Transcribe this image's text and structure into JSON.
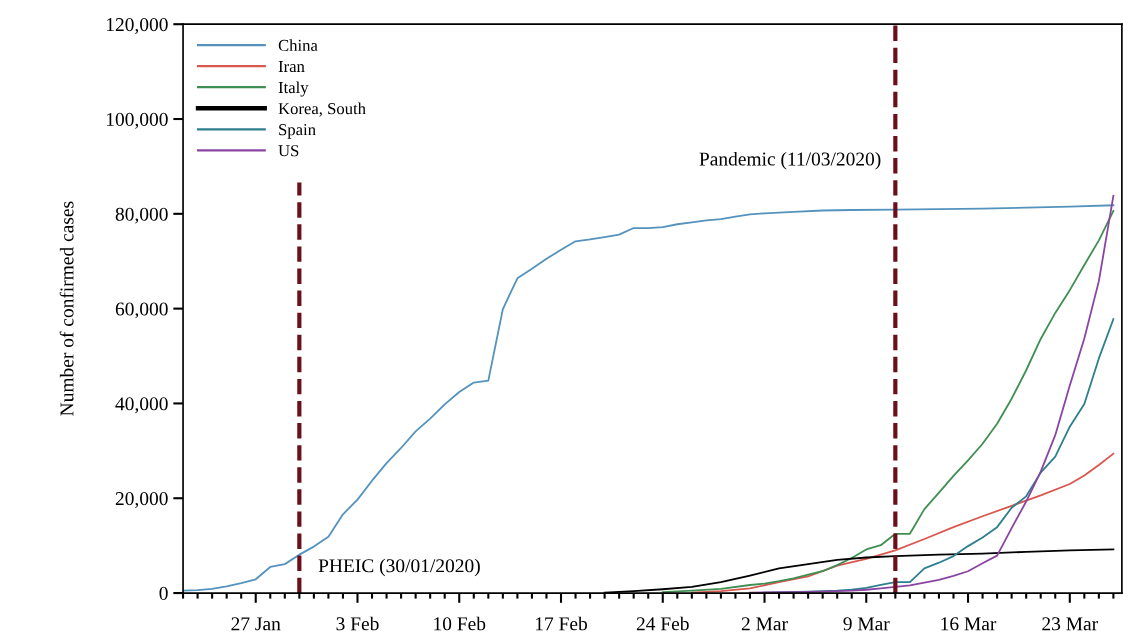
{
  "chart_data": {
    "type": "line",
    "ylabel": "Number of confirmed cases",
    "xlim": [
      "2020-01-22",
      "2020-03-26T14:00"
    ],
    "xticks": [
      {
        "value": "2020-01-27",
        "label": "27 Jan"
      },
      {
        "value": "2020-02-03",
        "label": "3 Feb"
      },
      {
        "value": "2020-02-10",
        "label": "10 Feb"
      },
      {
        "value": "2020-02-17",
        "label": "17 Feb"
      },
      {
        "value": "2020-02-24",
        "label": "24 Feb"
      },
      {
        "value": "2020-03-02",
        "label": "2 Mar"
      },
      {
        "value": "2020-03-09",
        "label": "9 Mar"
      },
      {
        "value": "2020-03-16",
        "label": "16 Mar"
      },
      {
        "value": "2020-03-23",
        "label": "23 Mar"
      }
    ],
    "ylim": [
      0,
      120000
    ],
    "yticks": [
      0,
      {
        "value": 20000,
        "label": "20,000"
      },
      {
        "value": 40000,
        "label": "40,000"
      },
      {
        "value": 60000,
        "label": "60,000"
      },
      {
        "value": 80000,
        "label": "80,000"
      },
      {
        "value": 100000,
        "label": "100,000"
      },
      {
        "value": 120000,
        "label": "120,000"
      }
    ],
    "grid": false,
    "legend": "top left",
    "marker": "none",
    "line_style": "solid",
    "ref_lines": [
      {
        "axis": "x",
        "value": "2020-01-30",
        "label": "PHEIC (30/01/2020)",
        "color": "#6b0f1a",
        "line_style": "dashed"
      },
      {
        "axis": "x",
        "value": "2020-03-11",
        "label": "Pandemic (11/03/2020)",
        "color": "#6b0f1a",
        "line_style": "dashed"
      }
    ],
    "series": [
      {
        "name": "China",
        "color": "#5393bd",
        "x": [
          "2020-01-22",
          "2020-01-23",
          "2020-01-24",
          "2020-01-25",
          "2020-01-26",
          "2020-01-27",
          "2020-01-28",
          "2020-01-29",
          "2020-01-30",
          "2020-01-31",
          "2020-02-01",
          "2020-02-02",
          "2020-02-03",
          "2020-02-04",
          "2020-02-05",
          "2020-02-06",
          "2020-02-07",
          "2020-02-08",
          "2020-02-09",
          "2020-02-10",
          "2020-02-11",
          "2020-02-12",
          "2020-02-13",
          "2020-02-14",
          "2020-02-15",
          "2020-02-16",
          "2020-02-17",
          "2020-02-18",
          "2020-02-19",
          "2020-02-20",
          "2020-02-21",
          "2020-02-22",
          "2020-02-23",
          "2020-02-24",
          "2020-02-25",
          "2020-02-26",
          "2020-02-27",
          "2020-02-28",
          "2020-02-29",
          "2020-03-01",
          "2020-03-02",
          "2020-03-04",
          "2020-03-06",
          "2020-03-08",
          "2020-03-11",
          "2020-03-14",
          "2020-03-17",
          "2020-03-20",
          "2020-03-23",
          "2020-03-26"
        ],
        "values": [
          500,
          600,
          900,
          1400,
          2100,
          2900,
          5500,
          6100,
          8100,
          9800,
          11900,
          16600,
          19700,
          23700,
          27400,
          30600,
          34100,
          36800,
          39800,
          42400,
          44400,
          44800,
          59900,
          66400,
          68400,
          70500,
          72400,
          74200,
          74600,
          75100,
          75600,
          77000,
          77000,
          77200,
          77800,
          78200,
          78600,
          78900,
          79400,
          79900,
          80100,
          80400,
          80700,
          80800,
          80900,
          81000,
          81100,
          81300,
          81500,
          81800
        ]
      },
      {
        "name": "Iran",
        "color": "#d9574e",
        "x": [
          "2020-02-26",
          "2020-02-28",
          "2020-03-01",
          "2020-03-03",
          "2020-03-05",
          "2020-03-07",
          "2020-03-09",
          "2020-03-11",
          "2020-03-13",
          "2020-03-15",
          "2020-03-17",
          "2020-03-19",
          "2020-03-21",
          "2020-03-23",
          "2020-03-24",
          "2020-03-25",
          "2020-03-26"
        ],
        "values": [
          100,
          400,
          1000,
          2300,
          3500,
          5800,
          7200,
          9000,
          11400,
          13900,
          16200,
          18400,
          20600,
          23000,
          24800,
          27000,
          29400
        ]
      },
      {
        "name": "Italy",
        "color": "#3f8f52",
        "x": [
          "2020-02-24",
          "2020-02-26",
          "2020-02-28",
          "2020-03-01",
          "2020-03-02",
          "2020-03-03",
          "2020-03-04",
          "2020-03-05",
          "2020-03-06",
          "2020-03-07",
          "2020-03-08",
          "2020-03-09",
          "2020-03-10",
          "2020-03-11",
          "2020-03-12",
          "2020-03-13",
          "2020-03-14",
          "2020-03-15",
          "2020-03-16",
          "2020-03-17",
          "2020-03-18",
          "2020-03-19",
          "2020-03-20",
          "2020-03-21",
          "2020-03-22",
          "2020-03-23",
          "2020-03-24",
          "2020-03-25",
          "2020-03-26"
        ],
        "values": [
          200,
          500,
          900,
          1700,
          2000,
          2500,
          3100,
          3900,
          4600,
          5900,
          7400,
          9200,
          10100,
          12500,
          12500,
          17700,
          21200,
          24700,
          28000,
          31500,
          35700,
          41000,
          47000,
          53600,
          59100,
          63900,
          69200,
          74400,
          80600
        ]
      },
      {
        "name": "Korea, South",
        "color": "#000000",
        "x": [
          "2020-02-20",
          "2020-02-22",
          "2020-02-24",
          "2020-02-26",
          "2020-02-28",
          "2020-03-01",
          "2020-03-03",
          "2020-03-05",
          "2020-03-07",
          "2020-03-09",
          "2020-03-11",
          "2020-03-14",
          "2020-03-17",
          "2020-03-20",
          "2020-03-23",
          "2020-03-26"
        ],
        "values": [
          100,
          400,
          800,
          1300,
          2300,
          3700,
          5200,
          6100,
          7000,
          7500,
          7800,
          8100,
          8300,
          8700,
          9000,
          9200
        ]
      },
      {
        "name": "Spain",
        "color": "#2e7f8e",
        "x": [
          "2020-03-02",
          "2020-03-05",
          "2020-03-07",
          "2020-03-08",
          "2020-03-09",
          "2020-03-10",
          "2020-03-11",
          "2020-03-12",
          "2020-03-13",
          "2020-03-14",
          "2020-03-15",
          "2020-03-16",
          "2020-03-17",
          "2020-03-18",
          "2020-03-19",
          "2020-03-20",
          "2020-03-21",
          "2020-03-22",
          "2020-03-23",
          "2020-03-24",
          "2020-03-25",
          "2020-03-26"
        ],
        "values": [
          100,
          300,
          500,
          700,
          1100,
          1700,
          2300,
          2300,
          5200,
          6400,
          7800,
          9900,
          11700,
          13900,
          18000,
          20400,
          25400,
          28800,
          35100,
          39900,
          49500,
          57800
        ]
      },
      {
        "name": "US",
        "color": "#8a45a3",
        "x": [
          "2020-03-01",
          "2020-03-04",
          "2020-03-06",
          "2020-03-08",
          "2020-03-09",
          "2020-03-10",
          "2020-03-11",
          "2020-03-12",
          "2020-03-13",
          "2020-03-14",
          "2020-03-15",
          "2020-03-16",
          "2020-03-17",
          "2020-03-18",
          "2020-03-19",
          "2020-03-20",
          "2020-03-21",
          "2020-03-22",
          "2020-03-23",
          "2020-03-24",
          "2020-03-25",
          "2020-03-26"
        ],
        "values": [
          100,
          200,
          300,
          500,
          700,
          1000,
          1300,
          1600,
          2200,
          2800,
          3600,
          4600,
          6300,
          7900,
          13700,
          19300,
          25600,
          33300,
          43800,
          53700,
          65800,
          83800
        ]
      }
    ]
  }
}
